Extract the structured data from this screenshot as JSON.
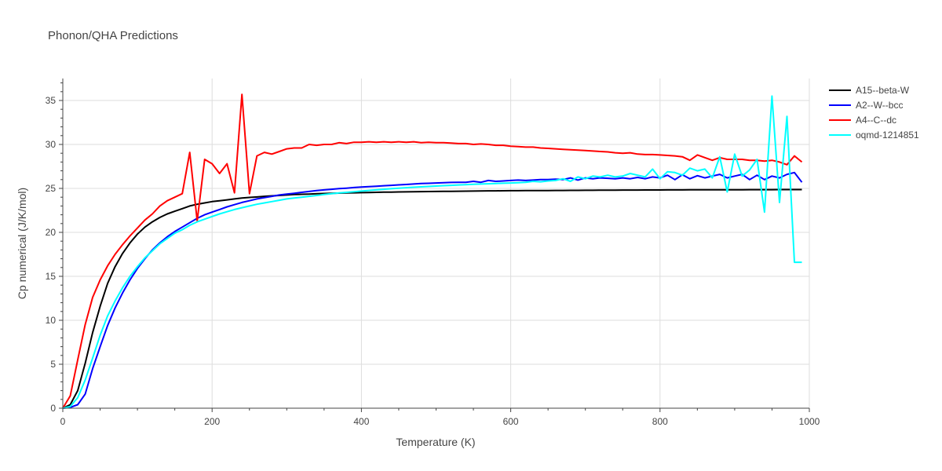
{
  "chart_data": {
    "type": "line",
    "title": "Phonon/QHA Predictions",
    "xlabel": "Temperature (K)",
    "ylabel": "Cp numerical (J/K/mol)",
    "xlim": [
      0,
      1000
    ],
    "ylim": [
      0,
      37.5
    ],
    "xticks": [
      0,
      200,
      400,
      600,
      800,
      1000
    ],
    "yticks": [
      0,
      5,
      10,
      15,
      20,
      25,
      30,
      35
    ],
    "legend_position": "top-right",
    "x": [
      0,
      10,
      20,
      30,
      40,
      50,
      60,
      70,
      80,
      90,
      100,
      110,
      120,
      130,
      140,
      150,
      160,
      170,
      180,
      190,
      200,
      210,
      220,
      230,
      240,
      250,
      260,
      270,
      280,
      290,
      300,
      310,
      320,
      330,
      340,
      350,
      360,
      370,
      380,
      390,
      400,
      410,
      420,
      430,
      440,
      450,
      460,
      470,
      480,
      490,
      500,
      510,
      520,
      530,
      540,
      550,
      560,
      570,
      580,
      590,
      600,
      610,
      620,
      630,
      640,
      650,
      660,
      670,
      680,
      690,
      700,
      710,
      720,
      730,
      740,
      750,
      760,
      770,
      780,
      790,
      800,
      810,
      820,
      830,
      840,
      850,
      860,
      870,
      880,
      890,
      900,
      910,
      920,
      930,
      940,
      950,
      960,
      970,
      980,
      990
    ],
    "series": [
      {
        "name": "A15--beta-W",
        "color": "#000000",
        "values": [
          0,
          0.4,
          2.0,
          5.1,
          8.6,
          11.6,
          14.2,
          16.1,
          17.6,
          18.8,
          19.8,
          20.6,
          21.2,
          21.7,
          22.1,
          22.4,
          22.7,
          23.0,
          23.2,
          23.35,
          23.5,
          23.6,
          23.7,
          23.8,
          23.9,
          23.97,
          24.03,
          24.1,
          24.15,
          24.2,
          24.25,
          24.3,
          24.33,
          24.36,
          24.39,
          24.42,
          24.44,
          24.46,
          24.48,
          24.5,
          24.52,
          24.54,
          24.55,
          24.57,
          24.58,
          24.6,
          24.61,
          24.62,
          24.63,
          24.64,
          24.65,
          24.66,
          24.67,
          24.68,
          24.69,
          24.7,
          24.71,
          24.72,
          24.72,
          24.73,
          24.74,
          24.74,
          24.75,
          24.75,
          24.76,
          24.76,
          24.77,
          24.77,
          24.78,
          24.78,
          24.79,
          24.79,
          24.8,
          24.8,
          24.8,
          24.81,
          24.81,
          24.81,
          24.82,
          24.82,
          24.82,
          24.83,
          24.83,
          24.83,
          24.84,
          24.84,
          24.84,
          24.84,
          24.85,
          24.85,
          24.85,
          24.85,
          24.86,
          24.86,
          24.86,
          24.86,
          24.87,
          24.87,
          24.87,
          24.87
        ]
      },
      {
        "name": "A2--W--bcc",
        "color": "#0000ff",
        "values": [
          0,
          0.1,
          0.4,
          1.6,
          4.5,
          7.0,
          9.4,
          11.4,
          13.1,
          14.6,
          15.9,
          17.0,
          18.0,
          18.8,
          19.5,
          20.1,
          20.6,
          21.1,
          21.6,
          22.0,
          22.3,
          22.6,
          22.9,
          23.15,
          23.4,
          23.6,
          23.8,
          23.95,
          24.1,
          24.25,
          24.35,
          24.45,
          24.55,
          24.65,
          24.75,
          24.83,
          24.9,
          24.97,
          25.03,
          25.1,
          25.15,
          25.2,
          25.25,
          25.3,
          25.35,
          25.4,
          25.45,
          25.5,
          25.55,
          25.58,
          25.62,
          25.65,
          25.68,
          25.7,
          25.7,
          25.8,
          25.7,
          25.9,
          25.8,
          25.85,
          25.9,
          25.95,
          25.9,
          25.95,
          26.0,
          26.0,
          26.05,
          26.0,
          26.2,
          25.95,
          26.2,
          26.1,
          26.2,
          26.15,
          26.1,
          26.2,
          26.1,
          26.25,
          26.1,
          26.3,
          26.2,
          26.5,
          26.0,
          26.55,
          26.1,
          26.45,
          26.2,
          26.4,
          26.6,
          26.2,
          26.4,
          26.6,
          26.0,
          26.5,
          26.0,
          26.4,
          26.2,
          26.6,
          26.8,
          25.7
        ]
      },
      {
        "name": "A4--C--dc",
        "color": "#ff0000",
        "values": [
          0,
          1.4,
          5.5,
          9.5,
          12.6,
          14.6,
          16.2,
          17.5,
          18.6,
          19.6,
          20.5,
          21.4,
          22.1,
          23.0,
          23.6,
          24.0,
          24.4,
          29.1,
          21.3,
          28.3,
          27.8,
          26.7,
          27.8,
          24.5,
          35.7,
          24.4,
          28.7,
          29.1,
          28.9,
          29.2,
          29.5,
          29.6,
          29.6,
          30.0,
          29.9,
          30.0,
          30.0,
          30.2,
          30.1,
          30.25,
          30.25,
          30.3,
          30.25,
          30.3,
          30.25,
          30.3,
          30.25,
          30.3,
          30.2,
          30.25,
          30.2,
          30.2,
          30.15,
          30.1,
          30.1,
          30.0,
          30.05,
          30.0,
          29.9,
          29.9,
          29.8,
          29.75,
          29.7,
          29.7,
          29.6,
          29.55,
          29.5,
          29.45,
          29.4,
          29.35,
          29.3,
          29.25,
          29.2,
          29.15,
          29.05,
          29.0,
          29.05,
          28.9,
          28.85,
          28.85,
          28.8,
          28.75,
          28.7,
          28.6,
          28.2,
          28.8,
          28.5,
          28.2,
          28.5,
          28.3,
          28.3,
          28.3,
          28.2,
          28.2,
          28.1,
          28.2,
          28.0,
          27.7,
          28.7,
          28.0
        ]
      },
      {
        "name": "oqmd-1214851",
        "color": "#00ffff",
        "values": [
          0,
          0.2,
          1.2,
          3.2,
          5.7,
          8.3,
          10.5,
          12.2,
          13.7,
          15.0,
          16.1,
          17.1,
          17.9,
          18.7,
          19.3,
          19.9,
          20.3,
          20.8,
          21.2,
          21.5,
          21.8,
          22.1,
          22.35,
          22.6,
          22.8,
          23.0,
          23.2,
          23.35,
          23.5,
          23.65,
          23.8,
          23.9,
          24.0,
          24.1,
          24.2,
          24.3,
          24.4,
          24.48,
          24.55,
          24.62,
          24.7,
          24.77,
          24.83,
          24.9,
          24.96,
          25.02,
          25.08,
          25.13,
          25.18,
          25.22,
          25.27,
          25.31,
          25.35,
          25.39,
          25.43,
          25.47,
          25.5,
          25.53,
          25.56,
          25.59,
          25.62,
          25.65,
          25.7,
          25.8,
          25.75,
          25.85,
          25.9,
          26.1,
          25.8,
          26.3,
          26.1,
          26.4,
          26.3,
          26.5,
          26.3,
          26.4,
          26.7,
          26.5,
          26.3,
          27.2,
          26.1,
          26.9,
          26.8,
          26.5,
          27.3,
          27.0,
          27.2,
          26.2,
          28.6,
          24.6,
          28.9,
          26.4,
          27.1,
          28.3,
          22.3,
          35.5,
          23.4,
          33.2,
          16.6,
          16.6
        ]
      }
    ]
  }
}
